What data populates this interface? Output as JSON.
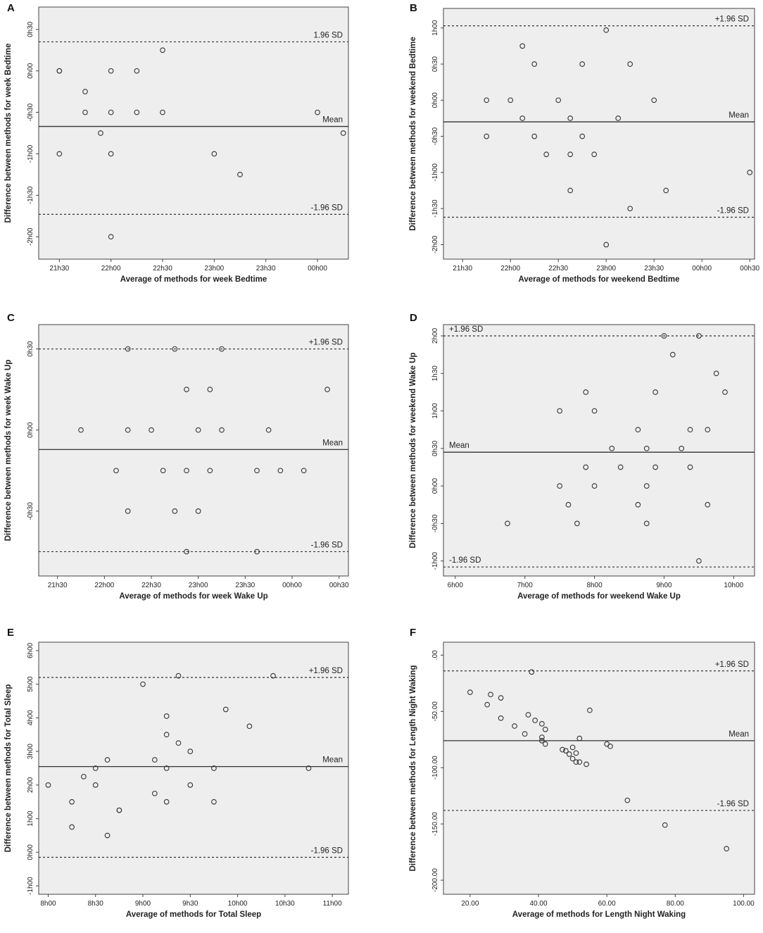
{
  "chart_data": [
    {
      "panel": "A",
      "type": "scatter",
      "xlabel": "Average of methods for week Bedtime",
      "ylabel": "Difference between methods for week Bedtime",
      "xlim": [
        21.3,
        24.3
      ],
      "ylim": [
        -2.27,
        0.77
      ],
      "xticks": [
        21.5,
        22.0,
        22.5,
        23.0,
        23.5,
        24.0
      ],
      "xtick_labels": [
        "21h30",
        "22h00",
        "22h30",
        "23h00",
        "23h30",
        "00h00"
      ],
      "yticks": [
        0.5,
        0.0,
        -0.5,
        -1.0,
        -1.5,
        -2.0
      ],
      "ytick_labels": [
        "0h30",
        "0h00",
        "-0h30",
        "-1h00",
        "-1h30",
        "-2h00"
      ],
      "mean": -0.67,
      "upper": 0.35,
      "lower": -1.73,
      "labels": {
        "mean": "Mean",
        "upper": "1.96 SD",
        "lower": "-1.96 SD"
      },
      "label_pos": {
        "mean": "right",
        "upper": "right",
        "lower": "right"
      },
      "x": [
        21.5,
        21.75,
        22.0,
        22.25,
        22.5,
        21.75,
        21.5,
        22.0,
        22.25,
        22.5,
        24.0,
        21.9,
        21.5,
        22.0,
        23.0,
        23.25,
        22.0,
        24.25
      ],
      "y": [
        0.0,
        -0.25,
        0.0,
        0.0,
        0.25,
        -0.5,
        0.0,
        -0.5,
        -0.5,
        -0.5,
        -0.5,
        -0.75,
        -1.0,
        -1.0,
        -1.0,
        -1.25,
        -2.0,
        -0.75
      ]
    },
    {
      "panel": "B",
      "type": "scatter",
      "xlabel": "Average of methods for weekend Bedtime",
      "ylabel": "Difference between methods for weekend Bedtime",
      "xlim": [
        21.3,
        24.55
      ],
      "ylim": [
        -2.2,
        1.27
      ],
      "xticks": [
        21.5,
        22.0,
        22.5,
        23.0,
        23.5,
        24.0,
        24.5
      ],
      "xtick_labels": [
        "21h30",
        "22h00",
        "22h30",
        "23h00",
        "23h30",
        "00h00",
        "00h30"
      ],
      "yticks": [
        1.0,
        0.5,
        0.0,
        -0.5,
        -1.0,
        -1.5,
        -2.0
      ],
      "ytick_labels": [
        "1h00",
        "0h30",
        "0h00",
        "-0h30",
        "-1h00",
        "-1h30",
        "-2h00"
      ],
      "mean": -0.3,
      "upper": 1.03,
      "lower": -1.62,
      "labels": {
        "mean": "Mean",
        "upper": "+1.96 SD",
        "lower": "-1.96 SD"
      },
      "label_pos": {
        "mean": "right",
        "upper": "right",
        "lower": "right"
      },
      "x": [
        23.0,
        22.125,
        22.25,
        22.75,
        23.25,
        21.75,
        22.0,
        22.5,
        23.5,
        22.125,
        22.625,
        23.125,
        21.75,
        22.25,
        22.75,
        22.375,
        22.625,
        22.875,
        24.5,
        22.625,
        23.625,
        23.25,
        23.0
      ],
      "y": [
        0.97,
        0.75,
        0.5,
        0.5,
        0.5,
        0.0,
        0.0,
        0.0,
        0.0,
        -0.25,
        -0.25,
        -0.25,
        -0.5,
        -0.5,
        -0.5,
        -0.75,
        -0.75,
        -0.75,
        -1.0,
        -1.25,
        -1.25,
        -1.5,
        -2.0
      ]
    },
    {
      "panel": "C",
      "type": "scatter",
      "xlabel": "Average of methods for week Wake Up",
      "ylabel": "Difference between methods for week Wake Up",
      "xlim": [
        21.3,
        24.6
      ],
      "ylim": [
        -0.9,
        0.65
      ],
      "xticks": [
        21.5,
        22.0,
        22.5,
        23.0,
        23.5,
        24.0,
        24.5
      ],
      "xtick_labels": [
        "21h30",
        "22h00",
        "22h30",
        "23h00",
        "23h30",
        "00h00",
        "00h30"
      ],
      "yticks": [
        0.5,
        0.0,
        -0.5
      ],
      "ytick_labels": [
        "0h30",
        "0h00",
        "-0h30"
      ],
      "mean": -0.12,
      "upper": 0.5,
      "lower": -0.75,
      "labels": {
        "mean": "Mean",
        "upper": "+1.96 SD",
        "lower": "-1.96 SD"
      },
      "label_pos": {
        "mean": "right",
        "upper": "right",
        "lower": "right"
      },
      "x": [
        22.25,
        22.75,
        23.25,
        22.875,
        23.125,
        24.375,
        21.75,
        22.25,
        22.5,
        23.0,
        23.25,
        23.75,
        22.125,
        22.625,
        22.875,
        23.125,
        23.625,
        23.875,
        24.125,
        22.25,
        22.75,
        23.0,
        22.875,
        23.625
      ],
      "y": [
        0.5,
        0.5,
        0.5,
        0.25,
        0.25,
        0.25,
        0.0,
        0.0,
        0.0,
        0.0,
        0.0,
        0.0,
        -0.25,
        -0.25,
        -0.25,
        -0.25,
        -0.25,
        -0.25,
        -0.25,
        -0.5,
        -0.5,
        -0.5,
        -0.75,
        -0.75
      ]
    },
    {
      "panel": "D",
      "type": "scatter",
      "xlabel": "Average of methods for weekend Wake Up",
      "ylabel": "Difference between methods for weekend Wake Up",
      "xlim": [
        5.83,
        10.3
      ],
      "ylim": [
        -1.2,
        2.15
      ],
      "xticks": [
        6.0,
        7.0,
        8.0,
        9.0,
        10.0
      ],
      "xtick_labels": [
        "6h00",
        "7h00",
        "8h00",
        "9h00",
        "10h00"
      ],
      "yticks": [
        2.0,
        1.5,
        1.0,
        0.5,
        0.0,
        -0.5,
        -1.0
      ],
      "ytick_labels": [
        "2h00",
        "1h30",
        "1h00",
        "0h30",
        "0h00",
        "-0h30",
        "-1h00"
      ],
      "mean": 0.45,
      "upper": 2.0,
      "lower": -1.08,
      "labels": {
        "mean": "Mean",
        "upper": "+1.96 SD",
        "lower": "-1.96 SD"
      },
      "label_pos": {
        "mean": "left",
        "upper": "left",
        "lower": "left"
      },
      "x": [
        9.0,
        9.5,
        9.125,
        9.75,
        7.875,
        8.875,
        9.875,
        7.5,
        8.0,
        8.625,
        9.375,
        9.625,
        8.25,
        8.75,
        9.25,
        7.875,
        8.375,
        8.875,
        9.375,
        7.5,
        8.0,
        8.75,
        7.625,
        8.625,
        9.625,
        6.75,
        7.75,
        8.75,
        9.5
      ],
      "y": [
        2.0,
        2.0,
        1.75,
        1.5,
        1.25,
        1.25,
        1.25,
        1.0,
        1.0,
        0.75,
        0.75,
        0.75,
        0.5,
        0.5,
        0.5,
        0.25,
        0.25,
        0.25,
        0.25,
        0.0,
        0.0,
        0.0,
        -0.25,
        -0.25,
        -0.25,
        -0.5,
        -0.5,
        -0.5,
        -1.0
      ]
    },
    {
      "panel": "E",
      "type": "scatter",
      "xlabel": "Average of methods for Total Sleep",
      "ylabel": "Difference between methods for Total Sleep",
      "xlim": [
        7.9,
        11.17
      ],
      "ylim": [
        -1.25,
        6.25
      ],
      "xticks": [
        8.0,
        8.5,
        9.0,
        9.5,
        10.0,
        10.5,
        11.0
      ],
      "xtick_labels": [
        "8h00",
        "8h30",
        "9h00",
        "9h30",
        "10h00",
        "10h30",
        "11h00"
      ],
      "yticks": [
        6.0,
        5.0,
        4.0,
        3.0,
        2.0,
        1.0,
        0.0,
        -1.0
      ],
      "ytick_labels": [
        "6h00",
        "5h00",
        "4h00",
        "3h00",
        "2h00",
        "1h00",
        "0h00",
        "-1h00"
      ],
      "mean": 2.55,
      "upper": 5.2,
      "lower": -0.15,
      "labels": {
        "mean": "Mean",
        "upper": "+1.96 SD",
        "lower": "-1.96 SD"
      },
      "label_pos": {
        "mean": "right",
        "upper": "right",
        "lower": "right"
      },
      "x": [
        9.375,
        10.375,
        9.0,
        9.875,
        9.25,
        10.125,
        9.25,
        9.375,
        9.5,
        8.625,
        9.125,
        8.5,
        8.375,
        9.25,
        8.0,
        8.5,
        9.5,
        9.75,
        8.25,
        9.25,
        9.75,
        9.125,
        8.75,
        8.25,
        8.625,
        10.75,
        8.75
      ],
      "y": [
        5.25,
        5.25,
        5.0,
        4.25,
        4.05,
        3.75,
        3.5,
        3.25,
        3.0,
        2.75,
        2.75,
        2.5,
        2.25,
        2.5,
        2.0,
        2.0,
        2.0,
        2.5,
        1.5,
        1.5,
        1.5,
        1.75,
        1.25,
        0.75,
        0.5,
        2.5,
        1.25
      ]
    },
    {
      "panel": "F",
      "type": "scatter",
      "xlabel": "Average of methods for Length Night Waking",
      "ylabel": "Difference between methods for Length Night Waking",
      "xlim": [
        12.2,
        103.2
      ],
      "ylim": [
        -212.5,
        11.5
      ],
      "xticks": [
        20,
        40,
        60,
        80,
        100
      ],
      "xtick_labels": [
        "20.00",
        "40.00",
        "60.00",
        "80.00",
        "100.00"
      ],
      "yticks": [
        0,
        -50,
        -100,
        -150,
        -200
      ],
      "ytick_labels": [
        ".00",
        "-50.00",
        "-100.00",
        "-150.00",
        "-200.00"
      ],
      "mean": -76,
      "upper": -14,
      "lower": -138,
      "labels": {
        "mean": "Mean",
        "upper": "+1.96 SD",
        "lower": "-1.96 SD"
      },
      "label_pos": {
        "mean": "right",
        "upper": "right",
        "lower": "right"
      },
      "x": [
        20,
        25,
        26,
        29,
        29,
        33,
        36,
        37,
        38,
        39,
        41,
        41,
        41,
        42,
        42,
        47,
        48,
        49,
        50,
        50,
        51,
        51,
        52,
        52,
        54,
        55,
        60,
        61,
        66,
        77,
        95
      ],
      "y": [
        -33,
        -44,
        -35,
        -38,
        -56,
        -63,
        -70,
        -53,
        -15,
        -58,
        -61,
        -73,
        -76,
        -79,
        -66,
        -84,
        -85,
        -88,
        -82,
        -92,
        -95,
        -87,
        -74,
        -95,
        -97,
        -49,
        -79,
        -81,
        -129,
        -151,
        -172
      ]
    }
  ]
}
